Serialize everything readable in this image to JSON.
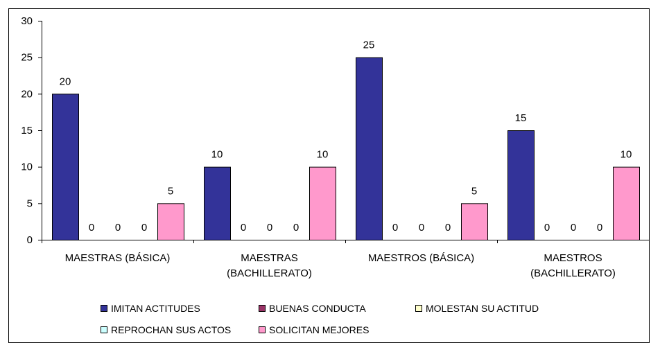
{
  "chart_data": {
    "type": "bar",
    "categories": [
      [
        "MAESTRAS (BÁSICA)"
      ],
      [
        "MAESTRAS",
        "(BACHILLERATO)"
      ],
      [
        "MAESTROS (BÁSICA)"
      ],
      [
        "MAESTROS",
        "(BACHILLERATO)"
      ]
    ],
    "series": [
      {
        "name": "IMITAN ACTITUDES",
        "values": [
          20,
          10,
          25,
          15
        ],
        "color": "#333399"
      },
      {
        "name": "BUENAS CONDUCTA",
        "values": [
          0,
          0,
          0,
          0
        ],
        "color": "#993366"
      },
      {
        "name": "MOLESTAN SU ACTITUD",
        "values": [
          0,
          0,
          0,
          0
        ],
        "color": "#FFFFCC"
      },
      {
        "name": "REPROCHAN SUS ACTOS",
        "values": [
          0,
          0,
          0,
          0
        ],
        "color": "#CCFFFF"
      },
      {
        "name": "SOLICITAN MEJORES",
        "values": [
          5,
          10,
          5,
          10
        ],
        "color": "#FF99CC"
      }
    ],
    "ylim": [
      0,
      30
    ],
    "yticks": [
      0,
      5,
      10,
      15,
      20,
      25,
      30
    ],
    "data_labels": true,
    "legend_position": "bottom",
    "grid": false
  }
}
